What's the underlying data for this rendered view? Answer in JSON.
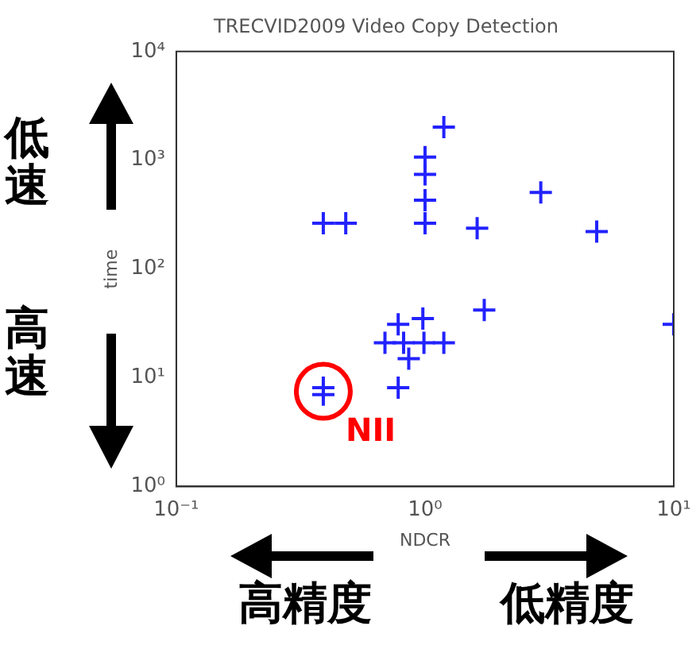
{
  "chart_data": {
    "type": "scatter",
    "title": "TRECVID2009 Video Copy Detection",
    "xlabel": "NDCR",
    "ylabel": "time",
    "log": "xy",
    "grid": false,
    "legend": false,
    "marker": "cross",
    "xlim": [
      0.1,
      10
    ],
    "ylim": [
      1,
      10000
    ],
    "xticks": [
      {
        "value": 0.1,
        "label": "10⁻¹"
      },
      {
        "value": 1,
        "label": "10⁰"
      },
      {
        "value": 10,
        "label": "10¹"
      }
    ],
    "yticks": [
      {
        "value": 1,
        "label": "10⁰"
      },
      {
        "value": 10,
        "label": "10¹"
      },
      {
        "value": 100,
        "label": "10²"
      },
      {
        "value": 1000,
        "label": "10³"
      },
      {
        "value": 10000,
        "label": "10⁴"
      }
    ],
    "series": [
      {
        "color": "#2222ff",
        "x": [
          1.19,
          1.0,
          1.0,
          1.0,
          1.0,
          0.39,
          0.48,
          1.62,
          2.92,
          4.9,
          1.73,
          10,
          0.78,
          0.98,
          0.69,
          0.82,
          0.99,
          1.19,
          0.86,
          0.78,
          0.39,
          0.39
        ],
        "values": [
          2020,
          1070,
          740,
          430,
          263,
          263,
          263,
          237,
          506,
          221,
          42,
          31,
          31,
          35,
          21,
          21,
          21,
          21,
          15,
          8.1,
          8.1,
          7.0
        ]
      }
    ],
    "annotations": [
      "低速",
      "高速",
      "高精度",
      "低精度",
      {
        "text": "NII",
        "x": 0.39,
        "y": 7.5
      }
    ]
  }
}
